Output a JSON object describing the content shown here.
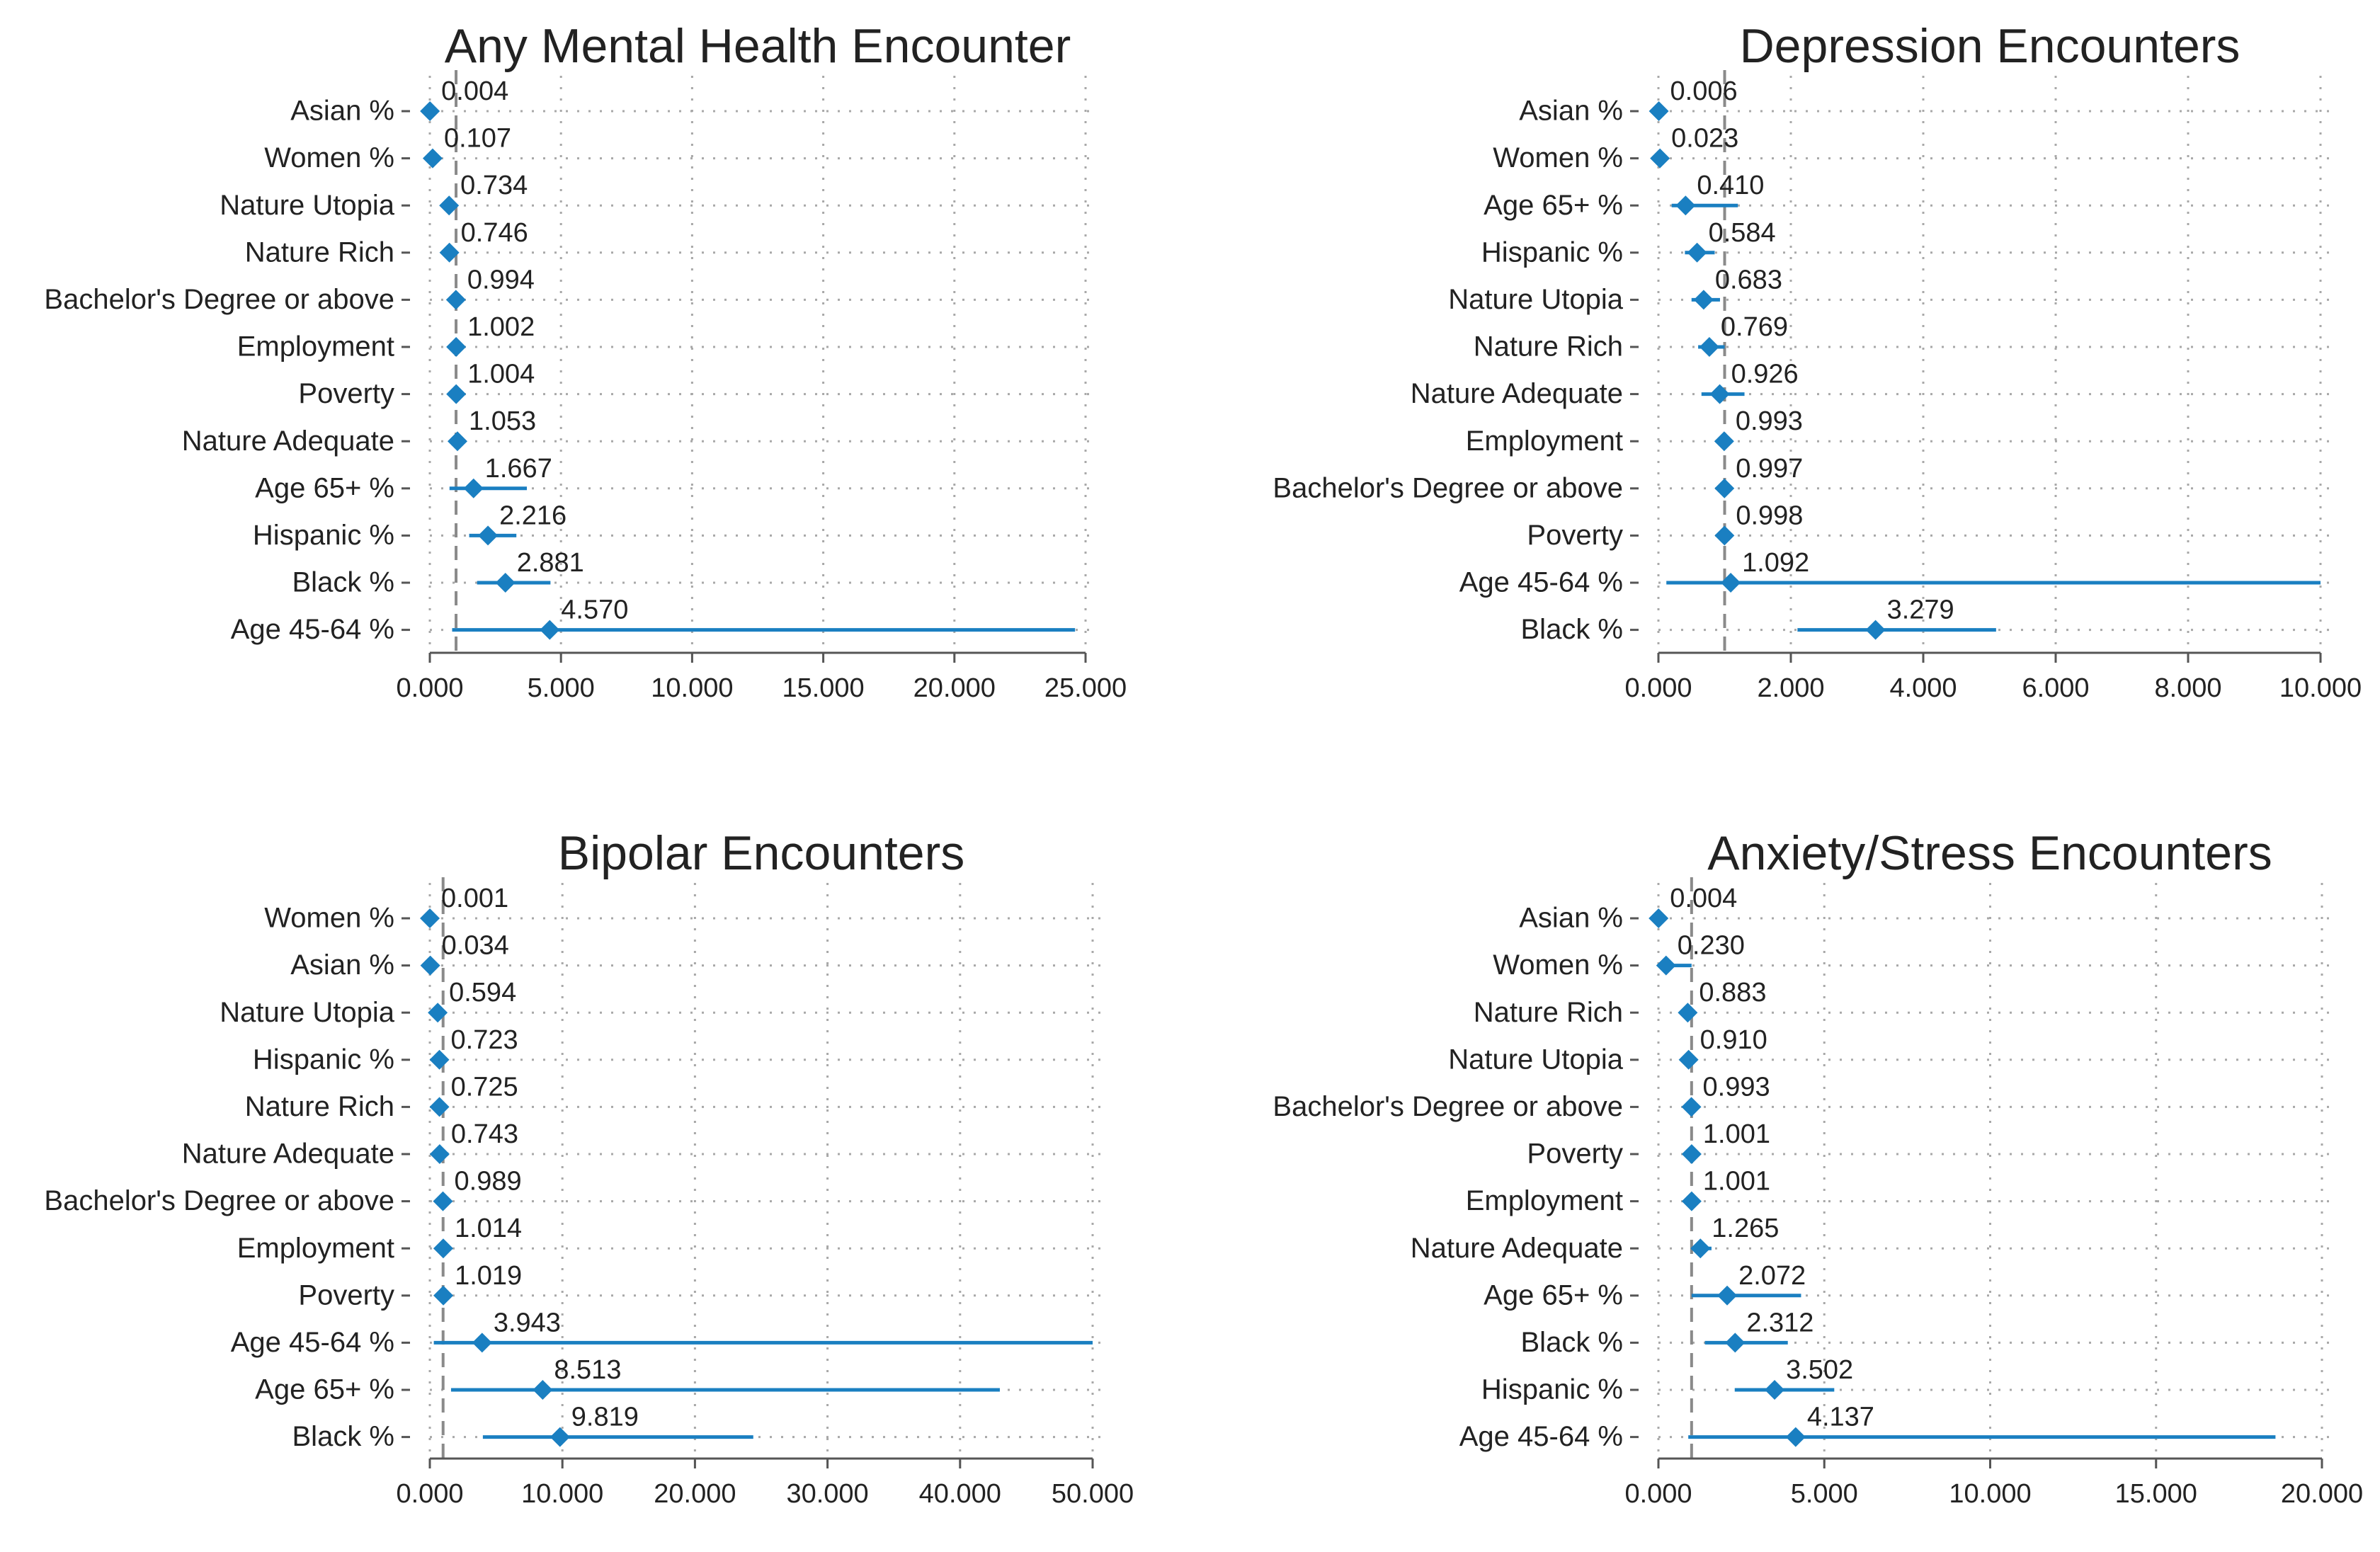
{
  "colors": {
    "accent": "#1a7fc1",
    "text": "#222222",
    "grid": "#a8a8a8",
    "axis": "#555555"
  },
  "chart_data": [
    {
      "type": "forest",
      "title": "Any Mental Health Encounter",
      "xlim": [
        0,
        25
      ],
      "xticks": [
        0,
        5,
        10,
        15,
        20,
        25
      ],
      "xtick_labels": [
        "0.000",
        "5.000",
        "10.000",
        "15.000",
        "20.000",
        "25.000"
      ],
      "reference_value": 1,
      "rows": [
        {
          "label": "Asian %",
          "value": 0.004,
          "value_label": "0.004",
          "ci": [
            0.0,
            0.03
          ]
        },
        {
          "label": "Women %",
          "value": 0.107,
          "value_label": "0.107",
          "ci": [
            0.03,
            0.3
          ]
        },
        {
          "label": "Nature Utopia",
          "value": 0.734,
          "value_label": "0.734",
          "ci": [
            0.55,
            0.95
          ]
        },
        {
          "label": "Nature Rich",
          "value": 0.746,
          "value_label": "0.746",
          "ci": [
            0.6,
            0.93
          ]
        },
        {
          "label": "Bachelor's Degree or above",
          "value": 0.994,
          "value_label": "0.994",
          "ci": [
            0.98,
            1.01
          ]
        },
        {
          "label": "Employment",
          "value": 1.002,
          "value_label": "1.002",
          "ci": [
            0.99,
            1.01
          ]
        },
        {
          "label": "Poverty",
          "value": 1.004,
          "value_label": "1.004",
          "ci": [
            0.99,
            1.02
          ]
        },
        {
          "label": "Nature Adequate",
          "value": 1.053,
          "value_label": "1.053",
          "ci": [
            0.85,
            1.3
          ]
        },
        {
          "label": "Age 65+ %",
          "value": 1.667,
          "value_label": "1.667",
          "ci": [
            0.75,
            3.7
          ]
        },
        {
          "label": "Hispanic %",
          "value": 2.216,
          "value_label": "2.216",
          "ci": [
            1.5,
            3.3
          ]
        },
        {
          "label": "Black %",
          "value": 2.881,
          "value_label": "2.881",
          "ci": [
            1.8,
            4.6
          ]
        },
        {
          "label": "Age 45-64 %",
          "value": 4.57,
          "value_label": "4.570",
          "ci": [
            0.85,
            24.6
          ]
        }
      ]
    },
    {
      "type": "forest",
      "title": "Depression Encounters",
      "xlim": [
        0,
        10
      ],
      "xticks": [
        0,
        2,
        4,
        6,
        8,
        10
      ],
      "xtick_labels": [
        "0.000",
        "2.000",
        "4.000",
        "6.000",
        "8.000",
        "10.000"
      ],
      "reference_value": 1,
      "rows": [
        {
          "label": "Asian %",
          "value": 0.006,
          "value_label": "0.006",
          "ci": [
            0.0,
            0.04
          ]
        },
        {
          "label": "Women %",
          "value": 0.023,
          "value_label": "0.023",
          "ci": [
            0.0,
            0.08
          ]
        },
        {
          "label": "Age 65+ %",
          "value": 0.41,
          "value_label": "0.410",
          "ci": [
            0.2,
            1.2
          ]
        },
        {
          "label": "Hispanic %",
          "value": 0.584,
          "value_label": "0.584",
          "ci": [
            0.4,
            0.85
          ]
        },
        {
          "label": "Nature Utopia",
          "value": 0.683,
          "value_label": "0.683",
          "ci": [
            0.5,
            0.93
          ]
        },
        {
          "label": "Nature Rich",
          "value": 0.769,
          "value_label": "0.769",
          "ci": [
            0.6,
            1.0
          ]
        },
        {
          "label": "Nature Adequate",
          "value": 0.926,
          "value_label": "0.926",
          "ci": [
            0.65,
            1.3
          ]
        },
        {
          "label": "Employment",
          "value": 0.993,
          "value_label": "0.993",
          "ci": [
            0.98,
            1.01
          ]
        },
        {
          "label": "Bachelor's Degree or above",
          "value": 0.997,
          "value_label": "0.997",
          "ci": [
            0.98,
            1.01
          ]
        },
        {
          "label": "Poverty",
          "value": 0.998,
          "value_label": "0.998",
          "ci": [
            0.98,
            1.02
          ]
        },
        {
          "label": "Age 45-64 %",
          "value": 1.092,
          "value_label": "1.092",
          "ci": [
            0.12,
            10.0
          ]
        },
        {
          "label": "Black %",
          "value": 3.279,
          "value_label": "3.279",
          "ci": [
            2.1,
            5.1
          ]
        }
      ]
    },
    {
      "type": "forest",
      "title": "Bipolar Encounters",
      "xlim": [
        0,
        50
      ],
      "xticks": [
        0,
        10,
        20,
        30,
        40,
        50
      ],
      "xtick_labels": [
        "0.000",
        "10.000",
        "20.000",
        "30.000",
        "40.000",
        "50.000"
      ],
      "reference_value": 1,
      "rows": [
        {
          "label": "Women %",
          "value": 0.001,
          "value_label": "0.001",
          "ci": [
            0.0,
            0.02
          ]
        },
        {
          "label": "Asian %",
          "value": 0.034,
          "value_label": "0.034",
          "ci": [
            0.0,
            0.2
          ]
        },
        {
          "label": "Nature Utopia",
          "value": 0.594,
          "value_label": "0.594",
          "ci": [
            0.3,
            1.1
          ]
        },
        {
          "label": "Hispanic %",
          "value": 0.723,
          "value_label": "0.723",
          "ci": [
            0.4,
            1.3
          ]
        },
        {
          "label": "Nature Rich",
          "value": 0.725,
          "value_label": "0.725",
          "ci": [
            0.4,
            1.2
          ]
        },
        {
          "label": "Nature Adequate",
          "value": 0.743,
          "value_label": "0.743",
          "ci": [
            0.4,
            1.4
          ]
        },
        {
          "label": "Bachelor's Degree or above",
          "value": 0.989,
          "value_label": "0.989",
          "ci": [
            0.96,
            1.02
          ]
        },
        {
          "label": "Employment",
          "value": 1.014,
          "value_label": "1.014",
          "ci": [
            0.98,
            1.05
          ]
        },
        {
          "label": "Poverty",
          "value": 1.019,
          "value_label": "1.019",
          "ci": [
            0.98,
            1.06
          ]
        },
        {
          "label": "Age 45-64 %",
          "value": 3.943,
          "value_label": "3.943",
          "ci": [
            0.3,
            50.0
          ]
        },
        {
          "label": "Age 65+ %",
          "value": 8.513,
          "value_label": "8.513",
          "ci": [
            1.6,
            43.0
          ]
        },
        {
          "label": "Black %",
          "value": 9.819,
          "value_label": "9.819",
          "ci": [
            4.0,
            24.4
          ]
        }
      ]
    },
    {
      "type": "forest",
      "title": "Anxiety/Stress Encounters",
      "xlim": [
        0,
        20
      ],
      "xticks": [
        0,
        5,
        10,
        15,
        20
      ],
      "xtick_labels": [
        "0.000",
        "5.000",
        "10.000",
        "15.000",
        "20.000"
      ],
      "reference_value": 1,
      "rows": [
        {
          "label": "Asian %",
          "value": 0.004,
          "value_label": "0.004",
          "ci": [
            0.0,
            0.03
          ]
        },
        {
          "label": "Women %",
          "value": 0.23,
          "value_label": "0.230",
          "ci": [
            0.05,
            1.0
          ]
        },
        {
          "label": "Nature Rich",
          "value": 0.883,
          "value_label": "0.883",
          "ci": [
            0.7,
            1.1
          ]
        },
        {
          "label": "Nature Utopia",
          "value": 0.91,
          "value_label": "0.910",
          "ci": [
            0.7,
            1.15
          ]
        },
        {
          "label": "Bachelor's Degree or above",
          "value": 0.993,
          "value_label": "0.993",
          "ci": [
            0.98,
            1.01
          ]
        },
        {
          "label": "Poverty",
          "value": 1.001,
          "value_label": "1.001",
          "ci": [
            0.99,
            1.01
          ]
        },
        {
          "label": "Employment",
          "value": 1.001,
          "value_label": "1.001",
          "ci": [
            0.99,
            1.01
          ]
        },
        {
          "label": "Nature Adequate",
          "value": 1.265,
          "value_label": "1.265",
          "ci": [
            1.0,
            1.6
          ]
        },
        {
          "label": "Age 65+ %",
          "value": 2.072,
          "value_label": "2.072",
          "ci": [
            1.0,
            4.3
          ]
        },
        {
          "label": "Black %",
          "value": 2.312,
          "value_label": "2.312",
          "ci": [
            1.4,
            3.9
          ]
        },
        {
          "label": "Hispanic %",
          "value": 3.502,
          "value_label": "3.502",
          "ci": [
            2.3,
            5.3
          ]
        },
        {
          "label": "Age 45-64 %",
          "value": 4.137,
          "value_label": "4.137",
          "ci": [
            0.9,
            18.6
          ]
        }
      ]
    }
  ]
}
